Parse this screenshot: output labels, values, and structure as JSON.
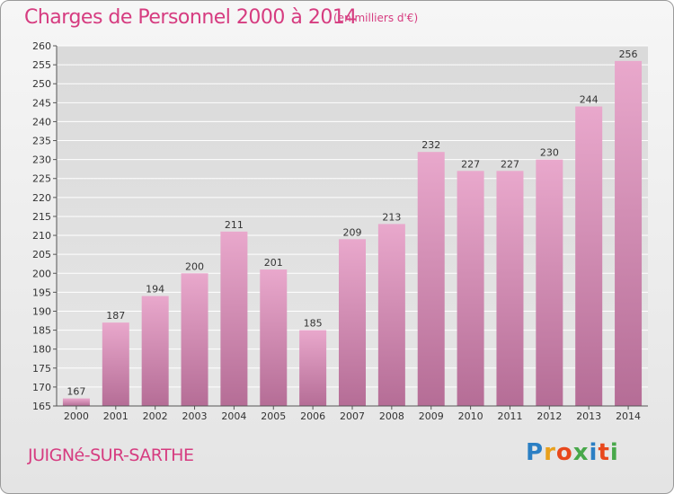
{
  "header": {
    "title": "Charges de Personnel 2000 à 2014",
    "unit": "(en milliers d'€)"
  },
  "footer": {
    "commune": "JUIGNé-SUR-SARTHE",
    "logo_letters": [
      "P",
      "r",
      "o",
      "x",
      "i",
      "t",
      "i"
    ],
    "logo_colors": [
      "#2b7fc4",
      "#e8a01c",
      "#e8481c",
      "#48a84a",
      "#2b7fc4",
      "#e8481c",
      "#48a84a"
    ]
  },
  "colors": {
    "bar_top": "#e9a8cc",
    "bar_bottom": "#b56d96",
    "accent": "#d63c80",
    "grid": "#ffffff"
  },
  "chart_data": {
    "type": "bar",
    "categories": [
      "2000",
      "2001",
      "2002",
      "2003",
      "2004",
      "2005",
      "2006",
      "2007",
      "2008",
      "2009",
      "2010",
      "2011",
      "2012",
      "2013",
      "2014"
    ],
    "values": [
      167,
      187,
      194,
      200,
      211,
      201,
      185,
      209,
      213,
      232,
      227,
      227,
      230,
      244,
      256
    ],
    "ylim": [
      165,
      260
    ],
    "yticks": [
      165,
      170,
      175,
      180,
      185,
      190,
      195,
      200,
      205,
      210,
      215,
      220,
      225,
      230,
      235,
      240,
      245,
      250,
      255,
      260
    ],
    "grid": true
  }
}
